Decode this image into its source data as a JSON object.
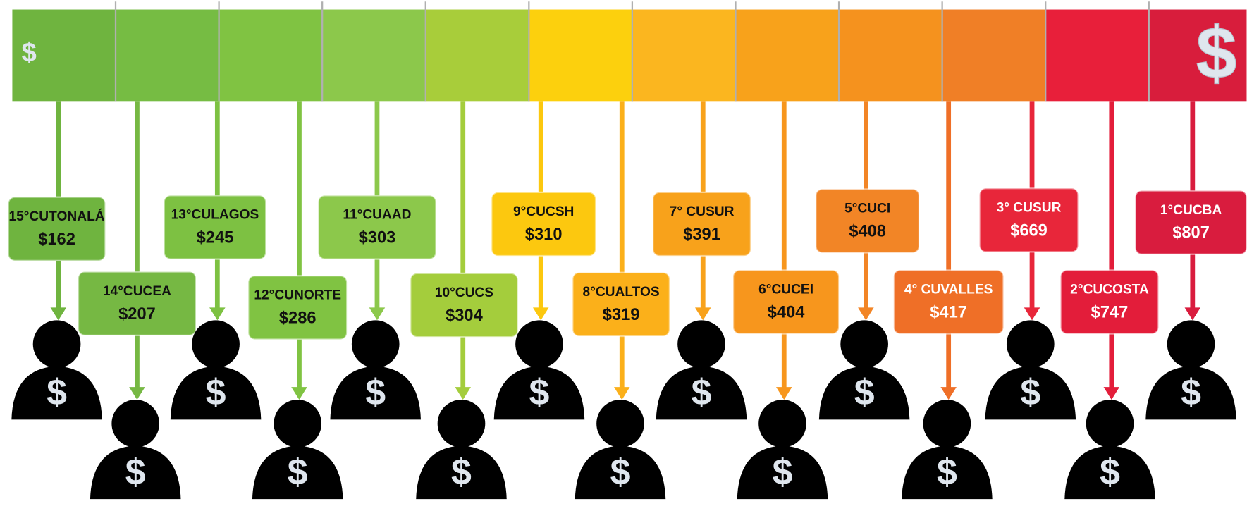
{
  "bar": {
    "left_symbol": "$",
    "right_symbol": "$"
  },
  "icon_symbol": "$",
  "items": [
    {
      "label": "15°CUTONALÁ",
      "value": "$162"
    },
    {
      "label": "14°CUCEA",
      "value": "$207"
    },
    {
      "label": "13°CULAGOS",
      "value": "$245"
    },
    {
      "label": "12°CUNORTE",
      "value": "$286"
    },
    {
      "label": "11°CUAAD",
      "value": "$303"
    },
    {
      "label": "10°CUCS",
      "value": "$304"
    },
    {
      "label": "9°CUCSH",
      "value": "$310"
    },
    {
      "label": "8°CUALTOS",
      "value": "$319"
    },
    {
      "label": "7° CUSUR",
      "value": "$391"
    },
    {
      "label": "6°CUCEI",
      "value": "$404"
    },
    {
      "label": "5°CUCI",
      "value": "$408"
    },
    {
      "label": "4° CUVALLES",
      "value": "$417"
    },
    {
      "label": "3° CUSUR",
      "value": "$669"
    },
    {
      "label": "2°CUCOSTA",
      "value": "$747"
    },
    {
      "label": "1°CUCBA",
      "value": "$807"
    }
  ]
}
